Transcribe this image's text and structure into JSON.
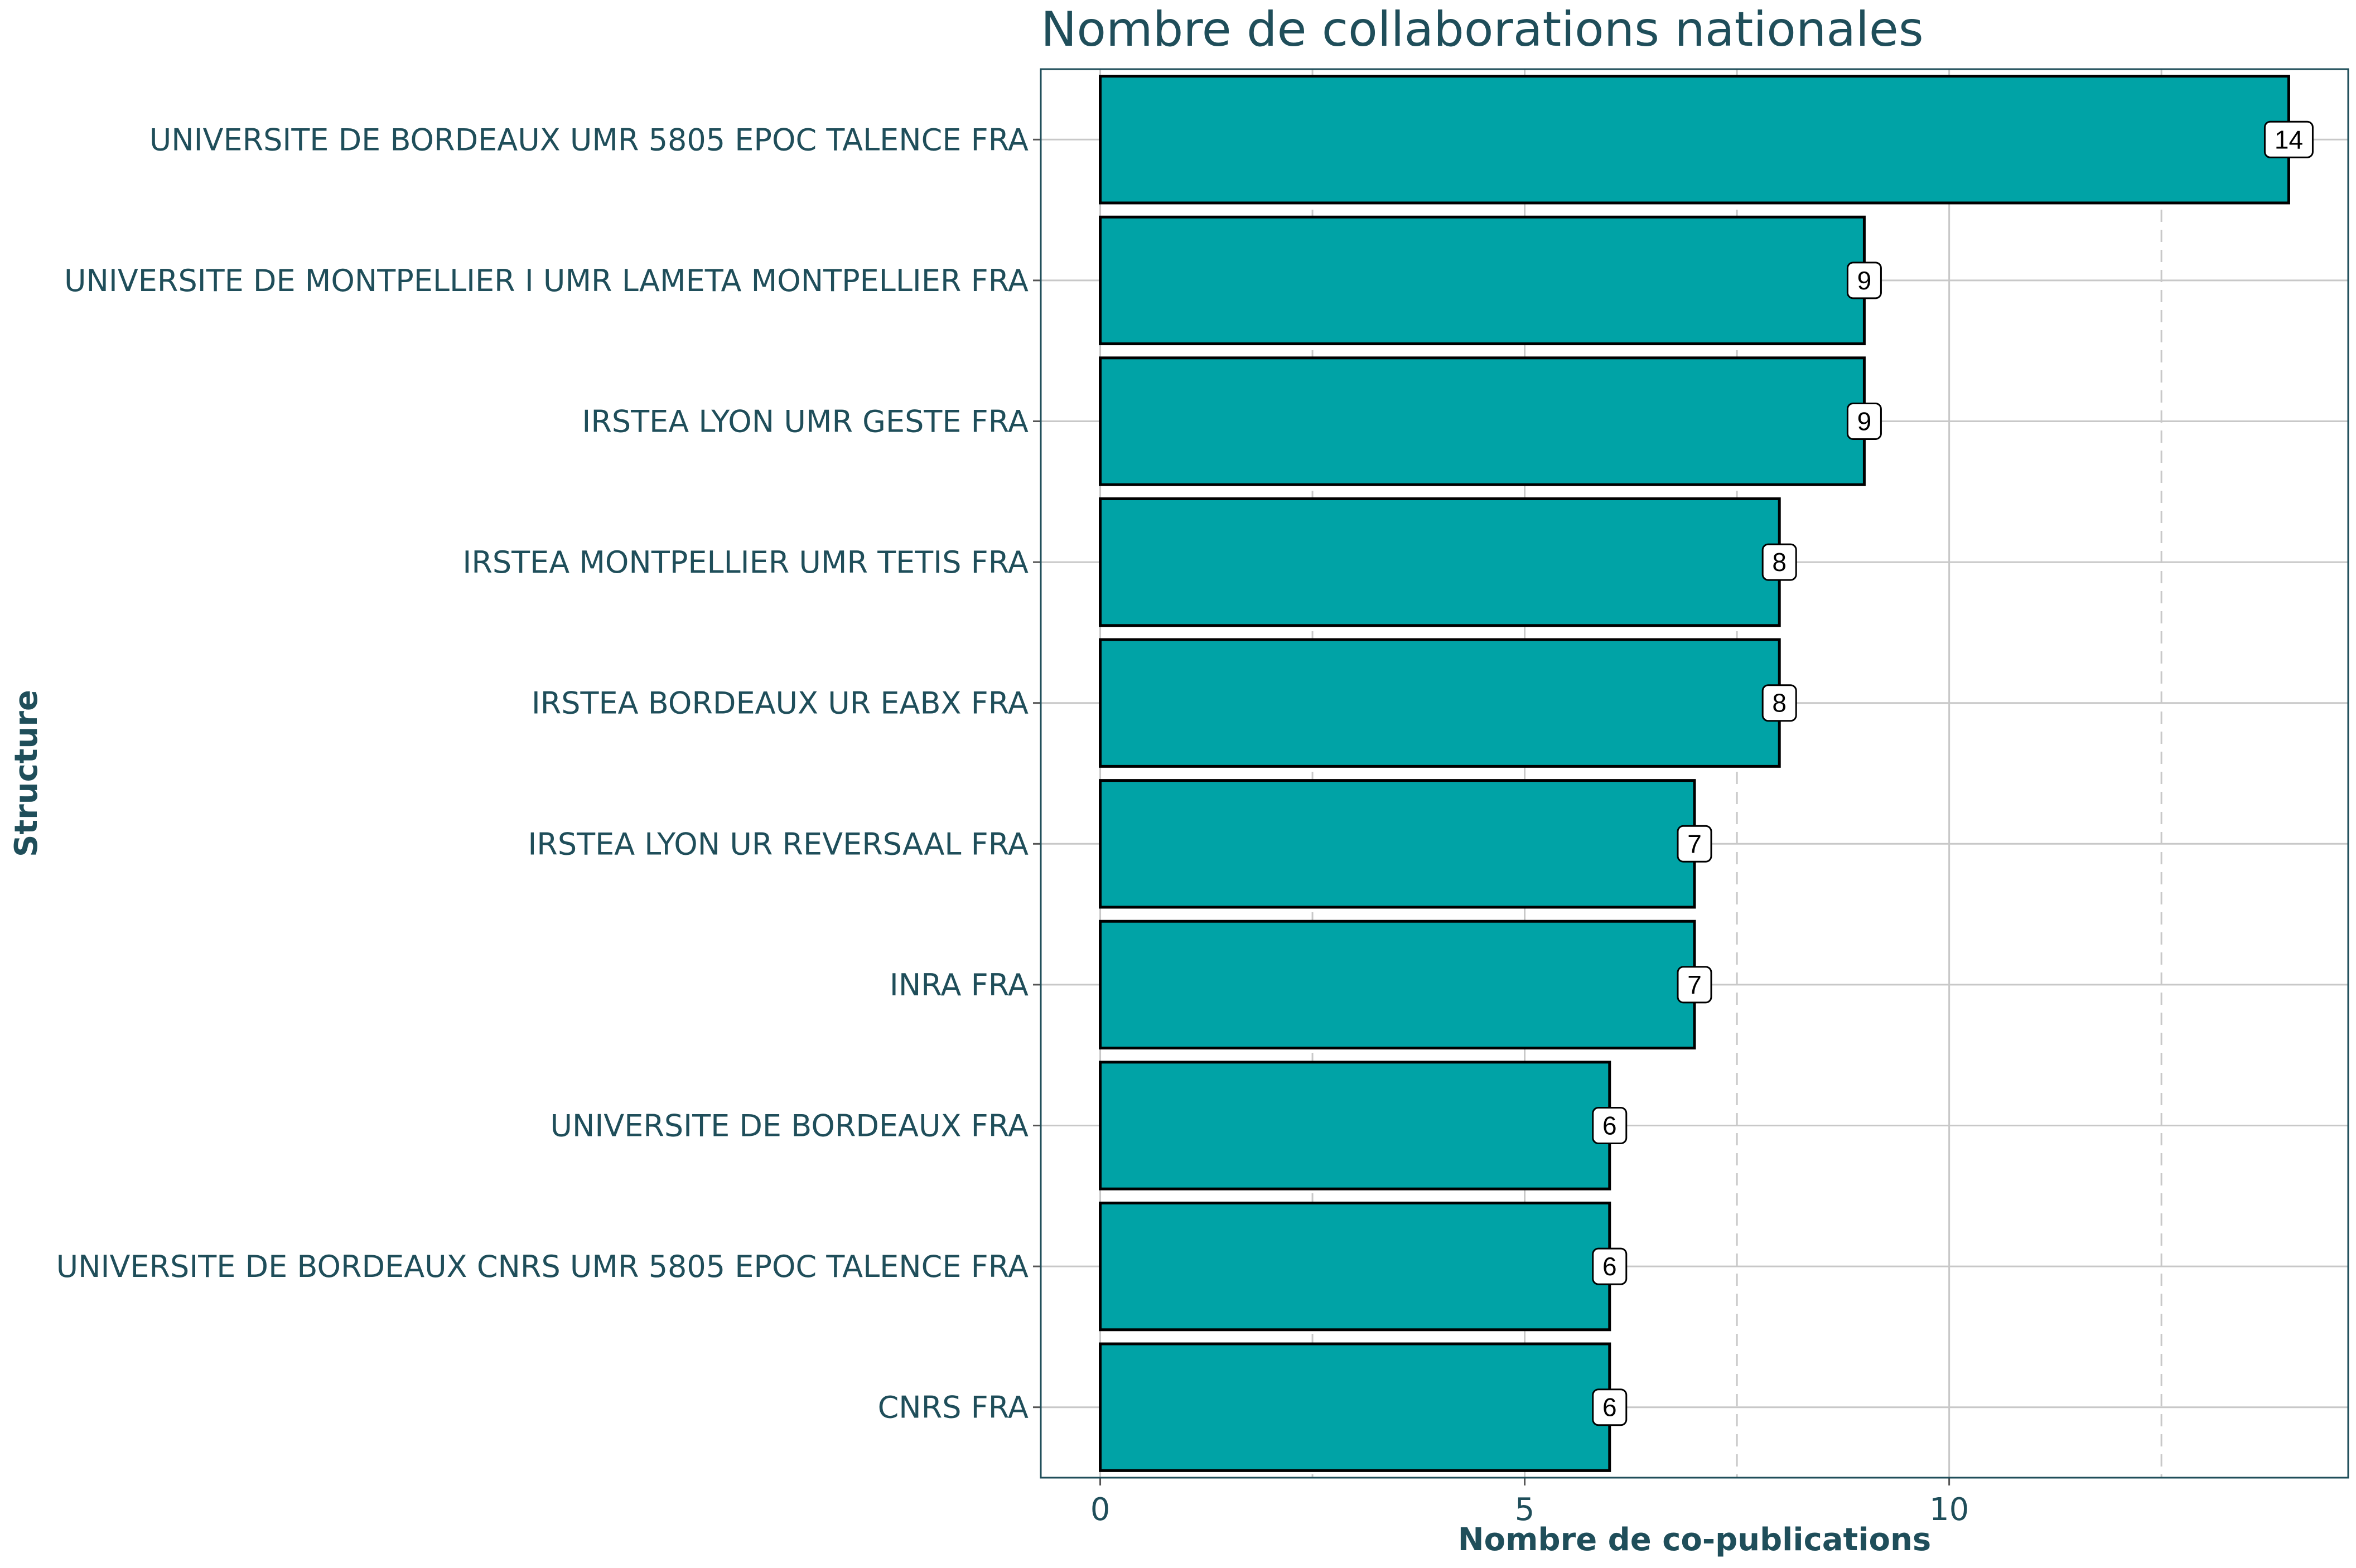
{
  "colors": {
    "bar_fill": "#00A3A6",
    "text": "#1f4e5a"
  },
  "chart_data": {
    "type": "bar",
    "orientation": "horizontal",
    "title": "Nombre de collaborations nationales",
    "xlabel": "Nombre de co-publications",
    "ylabel": "Structure",
    "categories": [
      "UNIVERSITE DE BORDEAUX UMR 5805 EPOC TALENCE FRA",
      "UNIVERSITE DE MONTPELLIER I UMR LAMETA MONTPELLIER FRA",
      "IRSTEA LYON UMR GESTE FRA",
      "IRSTEA MONTPELLIER UMR TETIS FRA",
      "IRSTEA BORDEAUX UR EABX FRA",
      "IRSTEA LYON UR REVERSAAL FRA",
      "INRA FRA",
      "UNIVERSITE DE BORDEAUX FRA",
      "UNIVERSITE DE BORDEAUX CNRS UMR 5805 EPOC TALENCE FRA",
      "CNRS FRA"
    ],
    "values": [
      14,
      9,
      9,
      8,
      8,
      7,
      7,
      6,
      6,
      6
    ],
    "data_labels": [
      "14",
      "9",
      "9",
      "8",
      "8",
      "7",
      "7",
      "6",
      "6",
      "6"
    ],
    "xlim": [
      -0.7,
      14.7
    ],
    "xticks": [
      0,
      5,
      10
    ],
    "xtick_labels": [
      "0",
      "5",
      "10"
    ],
    "minor_xticks": [
      2.5,
      7.5,
      12.5
    ],
    "grid": true,
    "legend": "none"
  }
}
